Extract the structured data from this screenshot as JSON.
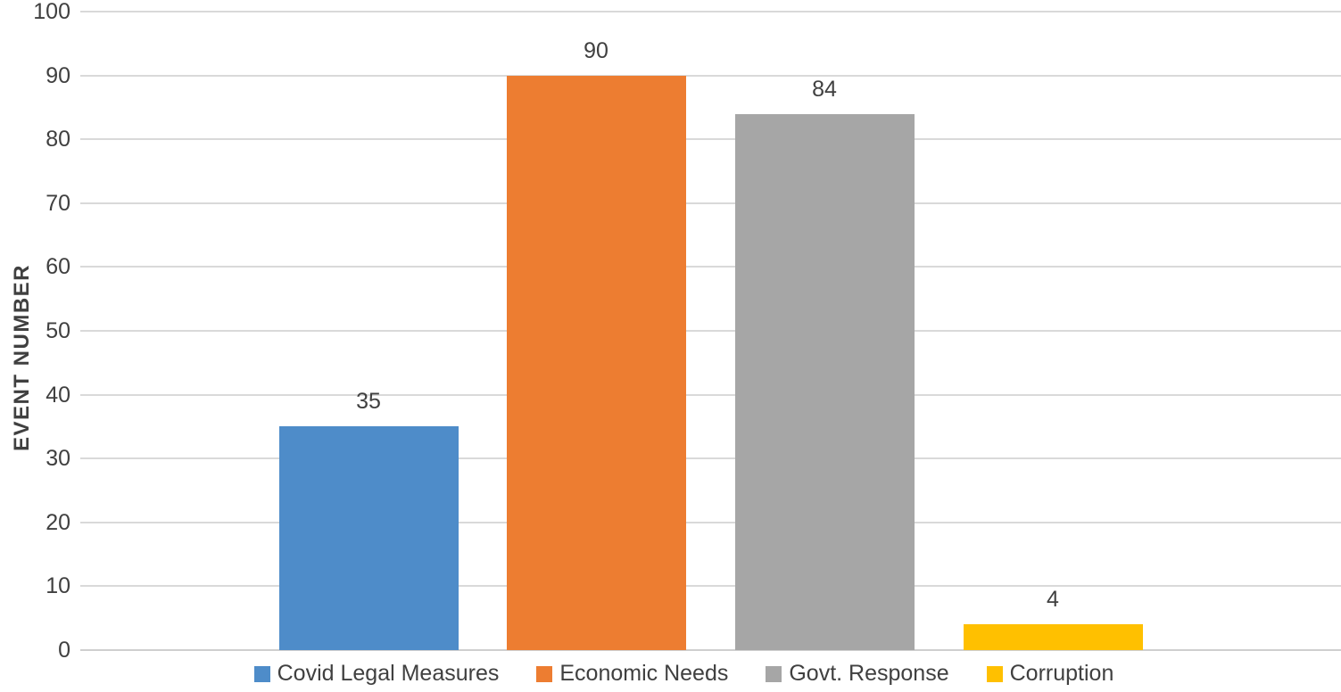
{
  "chart_data": {
    "type": "bar",
    "title": "",
    "xlabel": "",
    "ylabel": "EVENT NUMBER",
    "categories": [
      "Covid Legal Measures",
      "Economic Needs",
      "Govt. Response",
      "Corruption"
    ],
    "values": [
      35,
      90,
      84,
      4
    ],
    "data_labels": [
      "35",
      "90",
      "84",
      "4"
    ],
    "bar_colors": [
      "#4e8cc9",
      "#ed7d31",
      "#a6a6a6",
      "#ffc000"
    ],
    "ylim": [
      0,
      100
    ],
    "yticks": [
      0,
      10,
      20,
      30,
      40,
      50,
      60,
      70,
      80,
      90,
      100
    ],
    "ytick_labels": [
      "0",
      "10",
      "20",
      "30",
      "40",
      "50",
      "60",
      "70",
      "80",
      "90",
      "100"
    ],
    "grid": "horizontal",
    "gridline_color": "#d9d9d9",
    "text_color": "#404040",
    "legend_position": "bottom",
    "legend": [
      {
        "label": "Covid Legal Measures",
        "color": "#4e8cc9"
      },
      {
        "label": "Economic Needs",
        "color": "#ed7d31"
      },
      {
        "label": "Govt. Response",
        "color": "#a6a6a6"
      },
      {
        "label": "Corruption",
        "color": "#ffc000"
      }
    ]
  }
}
